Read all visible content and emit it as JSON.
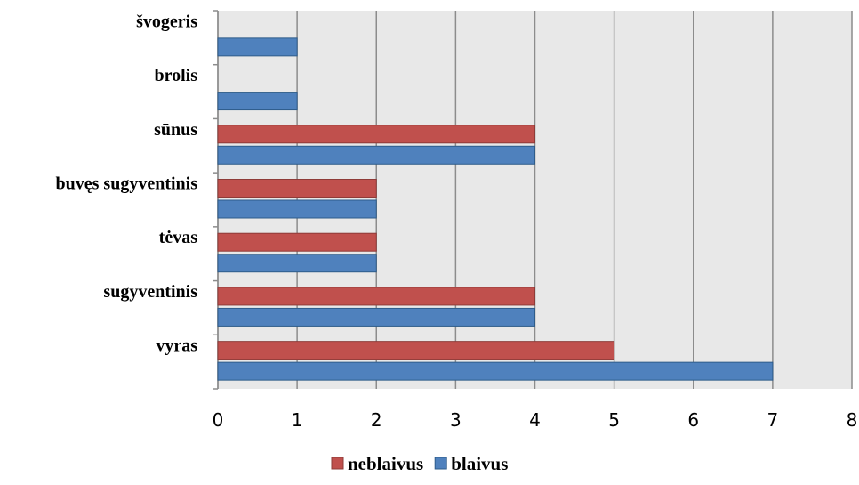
{
  "chart_data": {
    "type": "bar",
    "orientation": "horizontal",
    "categories": [
      "vyras",
      "sugyventinis",
      "tėvas",
      "buvęs sugyventinis",
      "sūnus",
      "brolis",
      "švogeris"
    ],
    "series": [
      {
        "name": "blaivus",
        "color": "#4F81BD",
        "values": [
          7,
          4,
          2,
          2,
          4,
          1,
          1
        ]
      },
      {
        "name": "neblaivus",
        "color": "#C0504D",
        "values": [
          5,
          4,
          2,
          2,
          4,
          null,
          null
        ]
      }
    ],
    "xlim": [
      0,
      8
    ],
    "xticks": [
      "0",
      "1",
      "2",
      "3",
      "4",
      "5",
      "6",
      "7",
      "8"
    ],
    "grid": true,
    "plot_background": "#E8E8E8",
    "legend_position": "bottom",
    "legend_order": [
      "neblaivus",
      "blaivus"
    ]
  }
}
